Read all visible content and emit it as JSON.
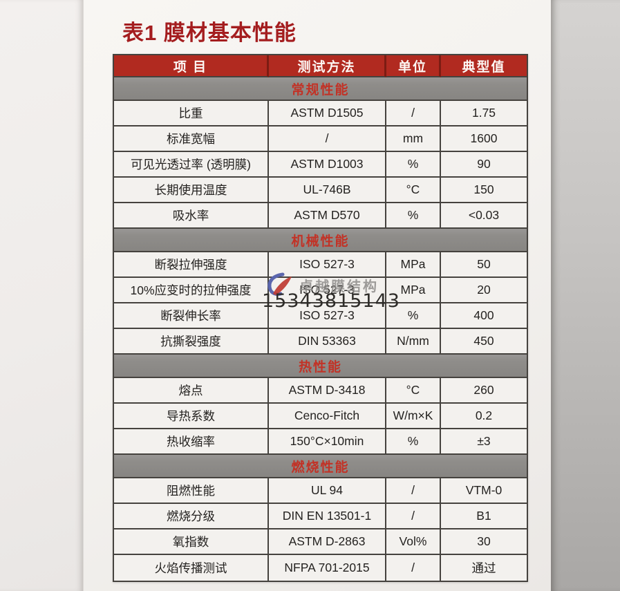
{
  "title": "表1 膜材基本性能",
  "table": {
    "columns": [
      "项 目",
      "测试方法",
      "单位",
      "典型值"
    ],
    "sections": [
      {
        "name": "常规性能",
        "rows": [
          {
            "item": "比重",
            "method": "ASTM D1505",
            "unit": "/",
            "value": "1.75"
          },
          {
            "item": "标准宽幅",
            "method": "/",
            "unit": "mm",
            "value": "1600"
          },
          {
            "item": "可见光透过率 (透明膜)",
            "method": "ASTM D1003",
            "unit": "%",
            "value": "90"
          },
          {
            "item": "长期使用温度",
            "method": "UL-746B",
            "unit": "°C",
            "value": "150"
          },
          {
            "item": "吸水率",
            "method": "ASTM D570",
            "unit": "%",
            "value": "<0.03"
          }
        ]
      },
      {
        "name": "机械性能",
        "rows": [
          {
            "item": "断裂拉伸强度",
            "method": "ISO 527-3",
            "unit": "MPa",
            "value": "50"
          },
          {
            "item": "10%应变时的拉伸强度",
            "method": "ISO 527-3",
            "unit": "MPa",
            "value": "20"
          },
          {
            "item": "断裂伸长率",
            "method": "ISO 527-3",
            "unit": "%",
            "value": "400"
          },
          {
            "item": "抗撕裂强度",
            "method": "DIN 53363",
            "unit": "N/mm",
            "value": "450"
          }
        ]
      },
      {
        "name": "热性能",
        "rows": [
          {
            "item": "熔点",
            "method": "ASTM D-3418",
            "unit": "°C",
            "value": "260"
          },
          {
            "item": "导热系数",
            "method": "Cenco-Fitch",
            "unit": "W/m×K",
            "value": "0.2"
          },
          {
            "item": "热收缩率",
            "method": "150°C×10min",
            "unit": "%",
            "value": "±3"
          }
        ]
      },
      {
        "name": "燃烧性能",
        "rows": [
          {
            "item": "阻燃性能",
            "method": "UL 94",
            "unit": "/",
            "value": "VTM-0"
          },
          {
            "item": "燃烧分级",
            "method": "DIN EN 13501-1",
            "unit": "/",
            "value": "B1"
          },
          {
            "item": "氧指数",
            "method": "ASTM D-2863",
            "unit": "Vol%",
            "value": "30"
          },
          {
            "item": "火焰传播测试",
            "method": "NFPA 701-2015",
            "unit": "/",
            "value": "通过"
          }
        ]
      }
    ]
  },
  "watermark": {
    "logo_icon": "brand-logo-icon",
    "brand": "卓越膜结构",
    "phone": "15343815143"
  },
  "colors": {
    "title_red": "#a41d1f",
    "header_red": "#b12a20",
    "section_gray": "#8f8d8a",
    "section_text_red": "#c23226",
    "cell_background": "#f3f1ee",
    "border": "#45423e",
    "logo_blue": "#5b66ad",
    "logo_red": "#bf3a31"
  }
}
